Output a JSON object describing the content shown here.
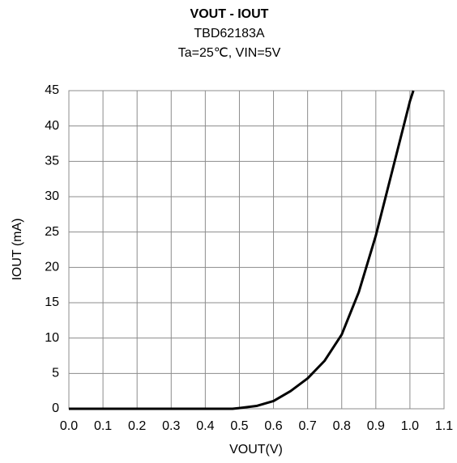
{
  "chart_data": {
    "type": "line",
    "title": "VOUT - IOUT",
    "subtitle": "TBD62183A",
    "subtitle2": "Ta=25℃, VIN=5V",
    "xlabel": "VOUT(V)",
    "ylabel": "IOUT (mA)",
    "xlim": [
      0,
      1.1
    ],
    "xticks": [
      {
        "value": 0,
        "label": "0.0"
      },
      0.1,
      0.2,
      0.3,
      0.4,
      0.5,
      0.6,
      0.7,
      0.8,
      0.9,
      {
        "value": 1,
        "label": "1.0"
      },
      1.1
    ],
    "ylim": [
      0,
      45
    ],
    "yticks": [
      0,
      5,
      10,
      15,
      20,
      25,
      30,
      35,
      40,
      45
    ],
    "grid": true,
    "series": [
      {
        "color": "#000000",
        "x": [
          0,
          0.1,
          0.2,
          0.3,
          0.4,
          0.48,
          0.5,
          0.55,
          0.6,
          0.65,
          0.7,
          0.75,
          0.8,
          0.85,
          0.9,
          0.95,
          1.0,
          1.01
        ],
        "values": [
          0,
          0,
          0,
          0,
          0,
          0,
          0.1,
          0.4,
          1.1,
          2.5,
          4.3,
          6.8,
          10.5,
          16.5,
          24.5,
          34,
          43.5,
          45
        ]
      }
    ]
  }
}
